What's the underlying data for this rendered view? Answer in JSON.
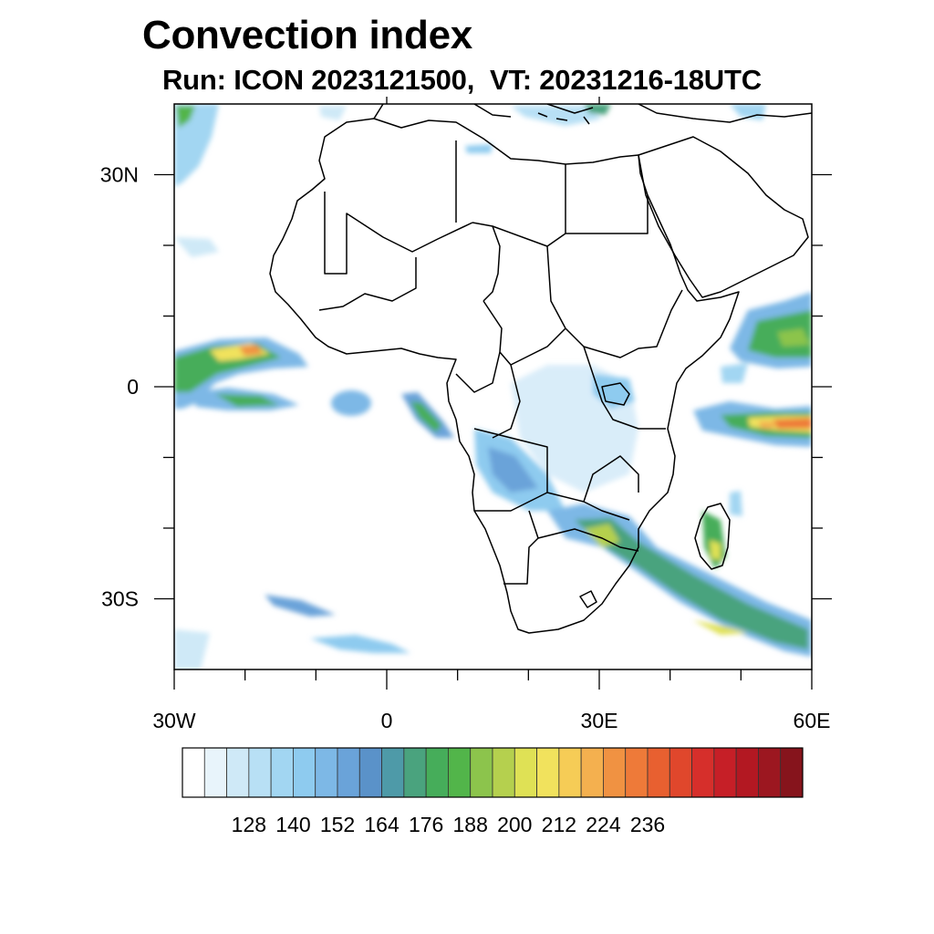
{
  "title": "Convection index",
  "subtitle": "Run: ICON 2023121500,  VT: 20231216-18UTC",
  "map": {
    "lon_range": [
      -30,
      60
    ],
    "lat_range": [
      -40,
      40
    ],
    "x_ticks": [
      {
        "value": -30,
        "label": "30W"
      },
      {
        "value": 0,
        "label": "0"
      },
      {
        "value": 30,
        "label": "30E"
      },
      {
        "value": 60,
        "label": "60E"
      }
    ],
    "y_ticks": [
      {
        "value": 30,
        "label": "30N"
      },
      {
        "value": 0,
        "label": "0"
      },
      {
        "value": -30,
        "label": "30S"
      }
    ]
  },
  "colorbar": {
    "tick_labels": [
      "128",
      "140",
      "152",
      "164",
      "176",
      "188",
      "200",
      "212",
      "224",
      "236"
    ],
    "colors": [
      "#ffffff",
      "#e8f4fb",
      "#cfe9f7",
      "#b8e0f5",
      "#a2d6f2",
      "#8ecbef",
      "#7db8e6",
      "#6aa3d9",
      "#5a92c9",
      "#4e9aa8",
      "#4aa37e",
      "#46ad5a",
      "#52b54a",
      "#8cc44c",
      "#b5d04e",
      "#dfe155",
      "#f1e25d",
      "#f6cc56",
      "#f4b04f",
      "#f09242",
      "#ee7a39",
      "#e86030",
      "#e0472c",
      "#d62f2b",
      "#c61f27",
      "#b31822",
      "#9c1720",
      "#86141c"
    ]
  }
}
